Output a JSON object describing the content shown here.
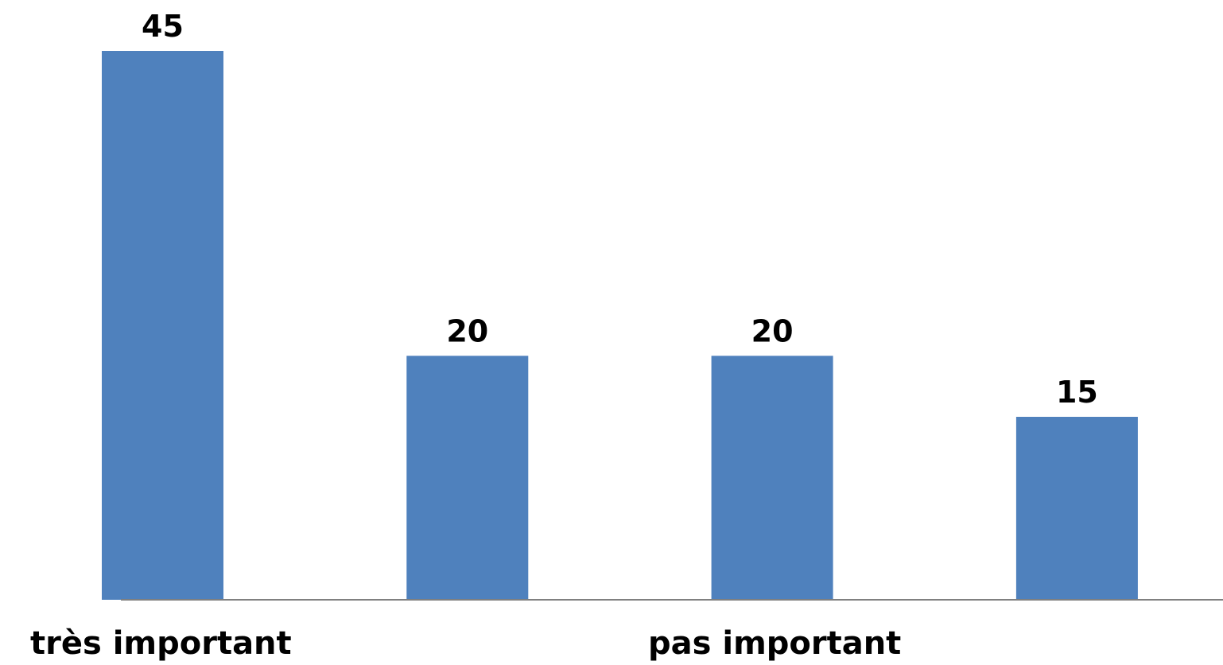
{
  "chart_data": {
    "type": "bar",
    "categories": [
      "très important",
      "",
      "",
      "pas important"
    ],
    "values": [
      45,
      20,
      20,
      15
    ],
    "data_labels": [
      "45",
      "20",
      "20",
      "15"
    ],
    "title": "",
    "xlabel": "",
    "ylabel": "",
    "ylim": [
      0,
      45
    ],
    "grid": false,
    "legend": "none",
    "bar_color": "#4F81BD",
    "axis_color": "#808080"
  }
}
